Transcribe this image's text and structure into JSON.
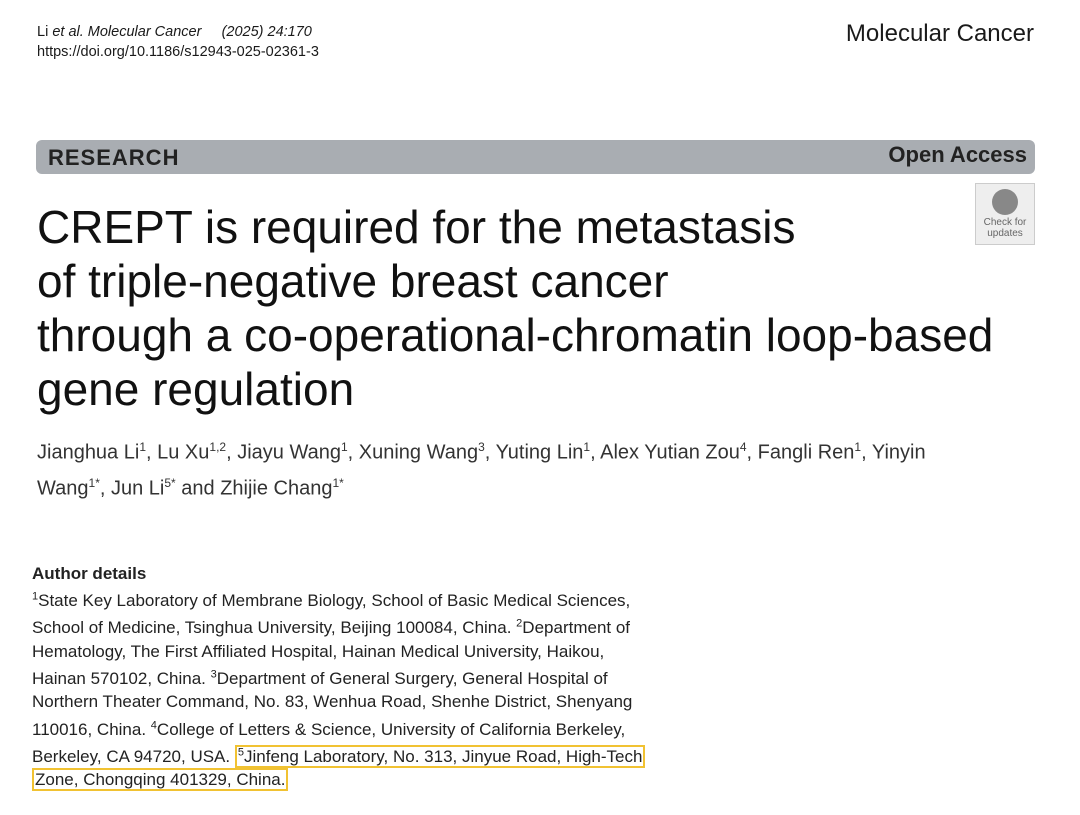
{
  "header": {
    "citation_author": "Li",
    "citation_journal": "et al. Molecular Cancer",
    "citation_volume": "(2025) 24:170",
    "doi": "https://doi.org/10.1186/s12943-025-02361-3",
    "journal": "Molecular Cancer"
  },
  "banner": {
    "type": "RESEARCH",
    "access": "Open Access"
  },
  "badge": {
    "line1": "Check for",
    "line2": "updates"
  },
  "title": {
    "lines": [
      "CREPT is required for the metastasis",
      "of triple-negative breast cancer",
      "through a co-operational-chromatin loop-based",
      "gene regulation"
    ]
  },
  "authors": [
    {
      "name": "Jianghua Li",
      "affil": "1",
      "sep": ", "
    },
    {
      "name": "Lu Xu",
      "affil": "1,2",
      "sep": ", "
    },
    {
      "name": "Jiayu Wang",
      "affil": "1",
      "sep": ", "
    },
    {
      "name": "Xuning Wang",
      "affil": "3",
      "sep": ", "
    },
    {
      "name": "Yuting Lin",
      "affil": "1",
      "sep": ", "
    },
    {
      "name": "Alex Yutian Zou",
      "affil": "4",
      "sep": ", "
    },
    {
      "name": "Fangli Ren",
      "affil": "1",
      "sep": ", "
    },
    {
      "name": "Yinyin Wang",
      "affil": "1*",
      "sep": ", "
    },
    {
      "name": "Jun Li",
      "affil": "5*",
      "sep": " and "
    },
    {
      "name": "Zhijie Chang",
      "affil": "1*"
    }
  ],
  "author_details": {
    "heading": "Author details",
    "affiliations": [
      {
        "num": "1",
        "text": "State Key Laboratory of Membrane Biology, School of Basic Medical Sciences, School of Medicine, Tsinghua University, Beijing 100084, China."
      },
      {
        "num": "2",
        "text": "Department of Hematology, The First Affiliated Hospital, Hainan Medical University, Haikou, Hainan 570102, China."
      },
      {
        "num": "3",
        "text": "Department of General Surgery, General Hospital of Northern Theater Command, No. 83, Wenhua Road, Shenhe District, Shenyang 110016, China."
      },
      {
        "num": "4",
        "text": "College of Letters & Science, University of California Berkeley, Berkeley, CA 94720, USA."
      },
      {
        "num": "5",
        "text": "Jinfeng Laboratory, No. 313, Jinyue Road, High-Tech Zone, Chongqing 401329, China.",
        "highlighted": true
      }
    ]
  }
}
